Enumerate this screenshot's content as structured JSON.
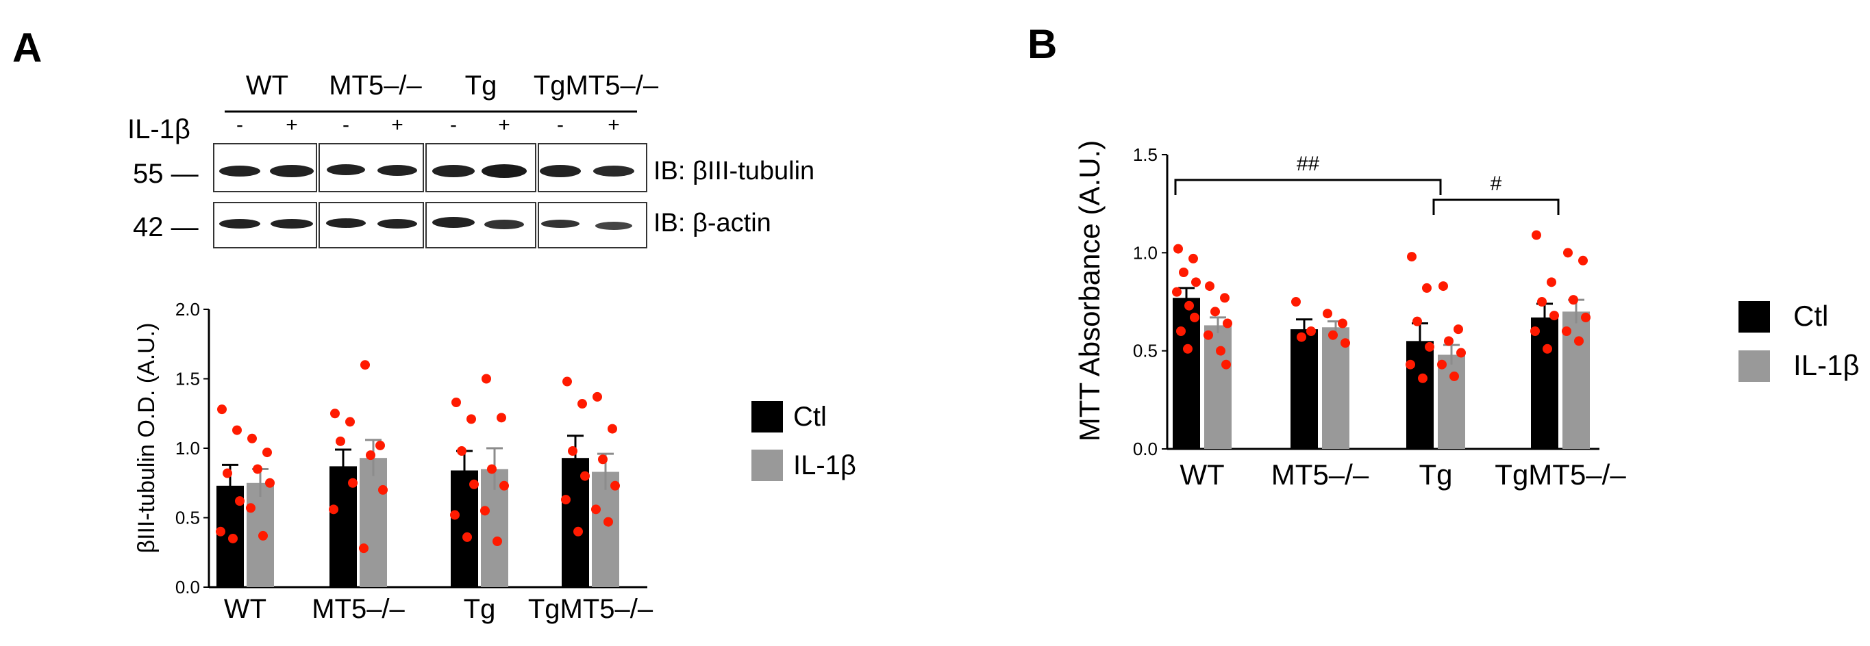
{
  "panels": {
    "a": {
      "letter": "A"
    },
    "b": {
      "letter": "B"
    }
  },
  "blot": {
    "groups": [
      "WT",
      "MT5–/–",
      "Tg",
      "TgMT5–/–"
    ],
    "row_label": "IL-1β",
    "signs": [
      "-",
      "+",
      "-",
      "+",
      "-",
      "+",
      "-",
      "+"
    ],
    "markers": [
      {
        "label": "55 —",
        "probe": "IB: βIII-tubulin"
      },
      {
        "label": "42 —",
        "probe": "IB: β-actin"
      }
    ]
  },
  "colors": {
    "ctl": "#000000",
    "il1b": "#999999",
    "il1b_err": "#8c8c8c",
    "dots": "#ff1a00",
    "band": "#222222"
  },
  "chart_data": [
    {
      "type": "bar",
      "id": "a",
      "title": "",
      "ylabel": "βIII-tubulin O.D. (A.U.)",
      "xlabel": "",
      "ylim": [
        0,
        2.0
      ],
      "yticks": [
        "0.0",
        "0.5",
        "1.0",
        "1.5",
        "2.0"
      ],
      "categories": [
        "WT",
        "MT5–/–",
        "Tg",
        "TgMT5–/–"
      ],
      "legend": [
        "Ctl",
        "IL-1β"
      ],
      "series": [
        {
          "name": "Ctl",
          "values": [
            0.73,
            0.87,
            0.84,
            0.93
          ],
          "sem": [
            0.15,
            0.12,
            0.14,
            0.16
          ],
          "points": [
            [
              1.28,
              1.13,
              0.82,
              0.62,
              0.4,
              0.35
            ],
            [
              1.25,
              1.19,
              1.05,
              0.75,
              0.56
            ],
            [
              1.33,
              1.21,
              0.98,
              0.74,
              0.52,
              0.36
            ],
            [
              1.48,
              1.32,
              0.98,
              0.8,
              0.63,
              0.4
            ]
          ]
        },
        {
          "name": "IL-1β",
          "values": [
            0.75,
            0.93,
            0.85,
            0.83
          ],
          "sem": [
            0.1,
            0.13,
            0.15,
            0.13
          ],
          "points": [
            [
              1.07,
              0.97,
              0.85,
              0.75,
              0.57,
              0.37
            ],
            [
              1.6,
              1.02,
              0.95,
              0.7,
              0.28
            ],
            [
              1.5,
              1.22,
              0.85,
              0.73,
              0.55,
              0.33
            ],
            [
              1.37,
              1.14,
              0.92,
              0.73,
              0.56,
              0.47
            ]
          ]
        }
      ]
    },
    {
      "type": "bar",
      "id": "b",
      "title": "",
      "ylabel": "MTT Absorbance (A.U.)",
      "xlabel": "",
      "ylim": [
        0,
        1.5
      ],
      "yticks": [
        "0.0",
        "0.5",
        "1.0",
        "1.5"
      ],
      "categories": [
        "WT",
        "MT5–/–",
        "Tg",
        "TgMT5–/–"
      ],
      "legend": [
        "Ctl",
        "IL-1β"
      ],
      "series": [
        {
          "name": "Ctl",
          "values": [
            0.77,
            0.61,
            0.55,
            0.67
          ],
          "sem": [
            0.05,
            0.05,
            0.09,
            0.07
          ],
          "points": [
            [
              1.02,
              0.97,
              0.9,
              0.85,
              0.8,
              0.73,
              0.67,
              0.6,
              0.51
            ],
            [
              0.75,
              0.6,
              0.57
            ],
            [
              0.98,
              0.82,
              0.65,
              0.52,
              0.43,
              0.36
            ],
            [
              1.09,
              0.85,
              0.75,
              0.68,
              0.6,
              0.51
            ]
          ]
        },
        {
          "name": "IL-1β",
          "values": [
            0.63,
            0.62,
            0.48,
            0.7
          ],
          "sem": [
            0.04,
            0.03,
            0.05,
            0.06
          ],
          "points": [
            [
              0.83,
              0.77,
              0.7,
              0.64,
              0.58,
              0.5,
              0.43
            ],
            [
              0.69,
              0.64,
              0.58,
              0.54
            ],
            [
              0.83,
              0.61,
              0.55,
              0.49,
              0.43,
              0.37
            ],
            [
              1.0,
              0.96,
              0.76,
              0.67,
              0.6,
              0.55
            ]
          ]
        }
      ],
      "annotations": [
        {
          "label": "##",
          "from": "WT",
          "to": "Tg"
        },
        {
          "label": "#",
          "from": "Tg",
          "to": "TgMT5–/–"
        }
      ]
    }
  ]
}
